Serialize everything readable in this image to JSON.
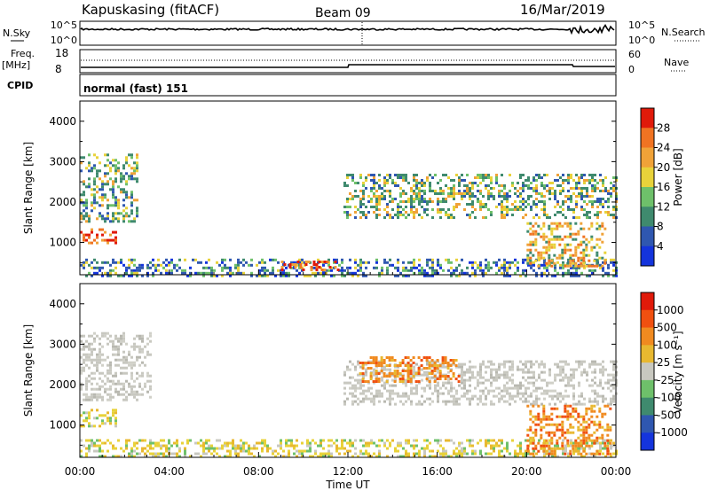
{
  "header": {
    "station": "Kapuskasing (fitACF)",
    "beam": "Beam 09",
    "date": "16/Mar/2019"
  },
  "strip_panels": {
    "nsky_label": "N.Sky",
    "nsky_ticks": [
      "10^5",
      "10^0"
    ],
    "nsearch_label": "N.Search",
    "nsearch_ticks": [
      "10^5",
      "10^0"
    ],
    "freq_label": "Freq.",
    "freq_unit": "[MHz]",
    "freq_ticks": [
      "18",
      "8"
    ],
    "nave_label": "Nave",
    "nave_ticks": [
      "60",
      "0"
    ],
    "cpid_label": "CPID",
    "cpid_value": "normal (fast) 151"
  },
  "chart_data": [
    {
      "type": "heatmap",
      "name": "power",
      "ylabel": "Slant Range [km]",
      "ylim": [
        200,
        4500
      ],
      "yticks": [
        "1000",
        "2000",
        "3000",
        "4000"
      ],
      "colorbar": {
        "label": "Power [dB]",
        "ticks": [
          "4",
          "8",
          "12",
          "16",
          "20",
          "24",
          "28"
        ],
        "colors": [
          "#1434dc",
          "#2f57b0",
          "#3f8a6e",
          "#6ec06a",
          "#e8d23a",
          "#f0a238",
          "#f07322",
          "#e01a0a"
        ],
        "range": [
          0,
          32
        ]
      },
      "regions": [
        {
          "x": [
            0.0,
            2.6
          ],
          "y": [
            1500,
            3200
          ],
          "level": "mixed-green"
        },
        {
          "x": [
            0.0,
            1.6
          ],
          "y": [
            1000,
            1350
          ],
          "level": "high"
        },
        {
          "x": [
            0.0,
            24.0
          ],
          "y": [
            200,
            600
          ],
          "level": "mixed-low"
        },
        {
          "x": [
            9.0,
            11.6
          ],
          "y": [
            300,
            550
          ],
          "level": "high"
        },
        {
          "x": [
            11.8,
            24.0
          ],
          "y": [
            1600,
            2700
          ],
          "level": "mixed-green"
        },
        {
          "x": [
            20.0,
            23.5
          ],
          "y": [
            400,
            1500
          ],
          "level": "mixed-orange"
        }
      ]
    },
    {
      "type": "heatmap",
      "name": "velocity",
      "xlabel": "Time UT",
      "xticks": [
        "00:00",
        "04:00",
        "08:00",
        "12:00",
        "16:00",
        "20:00",
        "00:00"
      ],
      "xlim": [
        0,
        24
      ],
      "ylabel": "Slant Range [km]",
      "ylim": [
        200,
        4500
      ],
      "yticks": [
        "1000",
        "2000",
        "3000",
        "4000"
      ],
      "colorbar": {
        "label": "Velocity [m s⁻¹]",
        "ticks": [
          "1000",
          "500",
          "100",
          "25",
          "-25",
          "-100",
          "-500",
          "-1000"
        ],
        "colors": [
          "#1434dc",
          "#2f57b0",
          "#3f8a6e",
          "#6ec06a",
          "#c8c8c0",
          "#e8b830",
          "#f08a20",
          "#f05010",
          "#e01a0a"
        ],
        "range": [
          -1200,
          1200
        ]
      },
      "regions": [
        {
          "x": [
            0.0,
            3.2
          ],
          "y": [
            1600,
            3300
          ],
          "level": "ground-grey"
        },
        {
          "x": [
            0.0,
            1.6
          ],
          "y": [
            1000,
            1400
          ],
          "level": "yellow-green"
        },
        {
          "x": [
            0.0,
            24.0
          ],
          "y": [
            200,
            650
          ],
          "level": "yellow-green"
        },
        {
          "x": [
            11.8,
            24.0
          ],
          "y": [
            1500,
            2600
          ],
          "level": "ground-grey"
        },
        {
          "x": [
            12.5,
            17.0
          ],
          "y": [
            2100,
            2700
          ],
          "level": "orange"
        },
        {
          "x": [
            20.0,
            23.8
          ],
          "y": [
            300,
            1500
          ],
          "level": "orange"
        }
      ]
    }
  ]
}
